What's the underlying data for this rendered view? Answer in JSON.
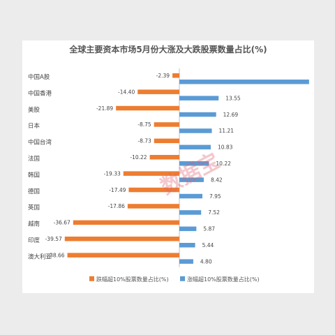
{
  "chart_data": {
    "type": "bar",
    "orientation": "horizontal",
    "title": "全球主要资本市场5月份大涨及大跌股票数量占比(%)",
    "categories": [
      "中国A股",
      "中国香港",
      "美股",
      "日本",
      "中国台湾",
      "法国",
      "韩国",
      "德国",
      "英国",
      "越南",
      "印度",
      "澳大利亚"
    ],
    "series": [
      {
        "name": "跌幅超10%股票数量占比(%)",
        "color": "#ed7d31",
        "values": [
          -2.39,
          -14.4,
          -21.89,
          -8.75,
          -8.73,
          -10.22,
          -19.33,
          -17.49,
          -17.86,
          -36.67,
          -39.57,
          -38.66
        ]
      },
      {
        "name": "涨幅超10%股票数量占比(%)",
        "color": "#5b9bd5",
        "values": [
          44.78,
          13.55,
          12.69,
          11.21,
          10.83,
          10.22,
          8.42,
          7.95,
          7.52,
          5.87,
          5.44,
          4.8
        ]
      }
    ],
    "value_labels_down": [
      "-2.39",
      "-14.40",
      "-21.89",
      "-8.75",
      "-8.73",
      "-10.22",
      "-19.33",
      "-17.49",
      "-17.86",
      "-36.67",
      "-39.57",
      "-38.66"
    ],
    "value_labels_up": [
      "44.78",
      "13.55",
      "12.69",
      "11.21",
      "10.83",
      "10.22",
      "8.42",
      "7.95",
      "7.52",
      "5.87",
      "5.44",
      "4.80"
    ],
    "xlim": [
      -45,
      50
    ],
    "legend_position": "bottom",
    "grid": false
  },
  "watermark": "数据宝"
}
